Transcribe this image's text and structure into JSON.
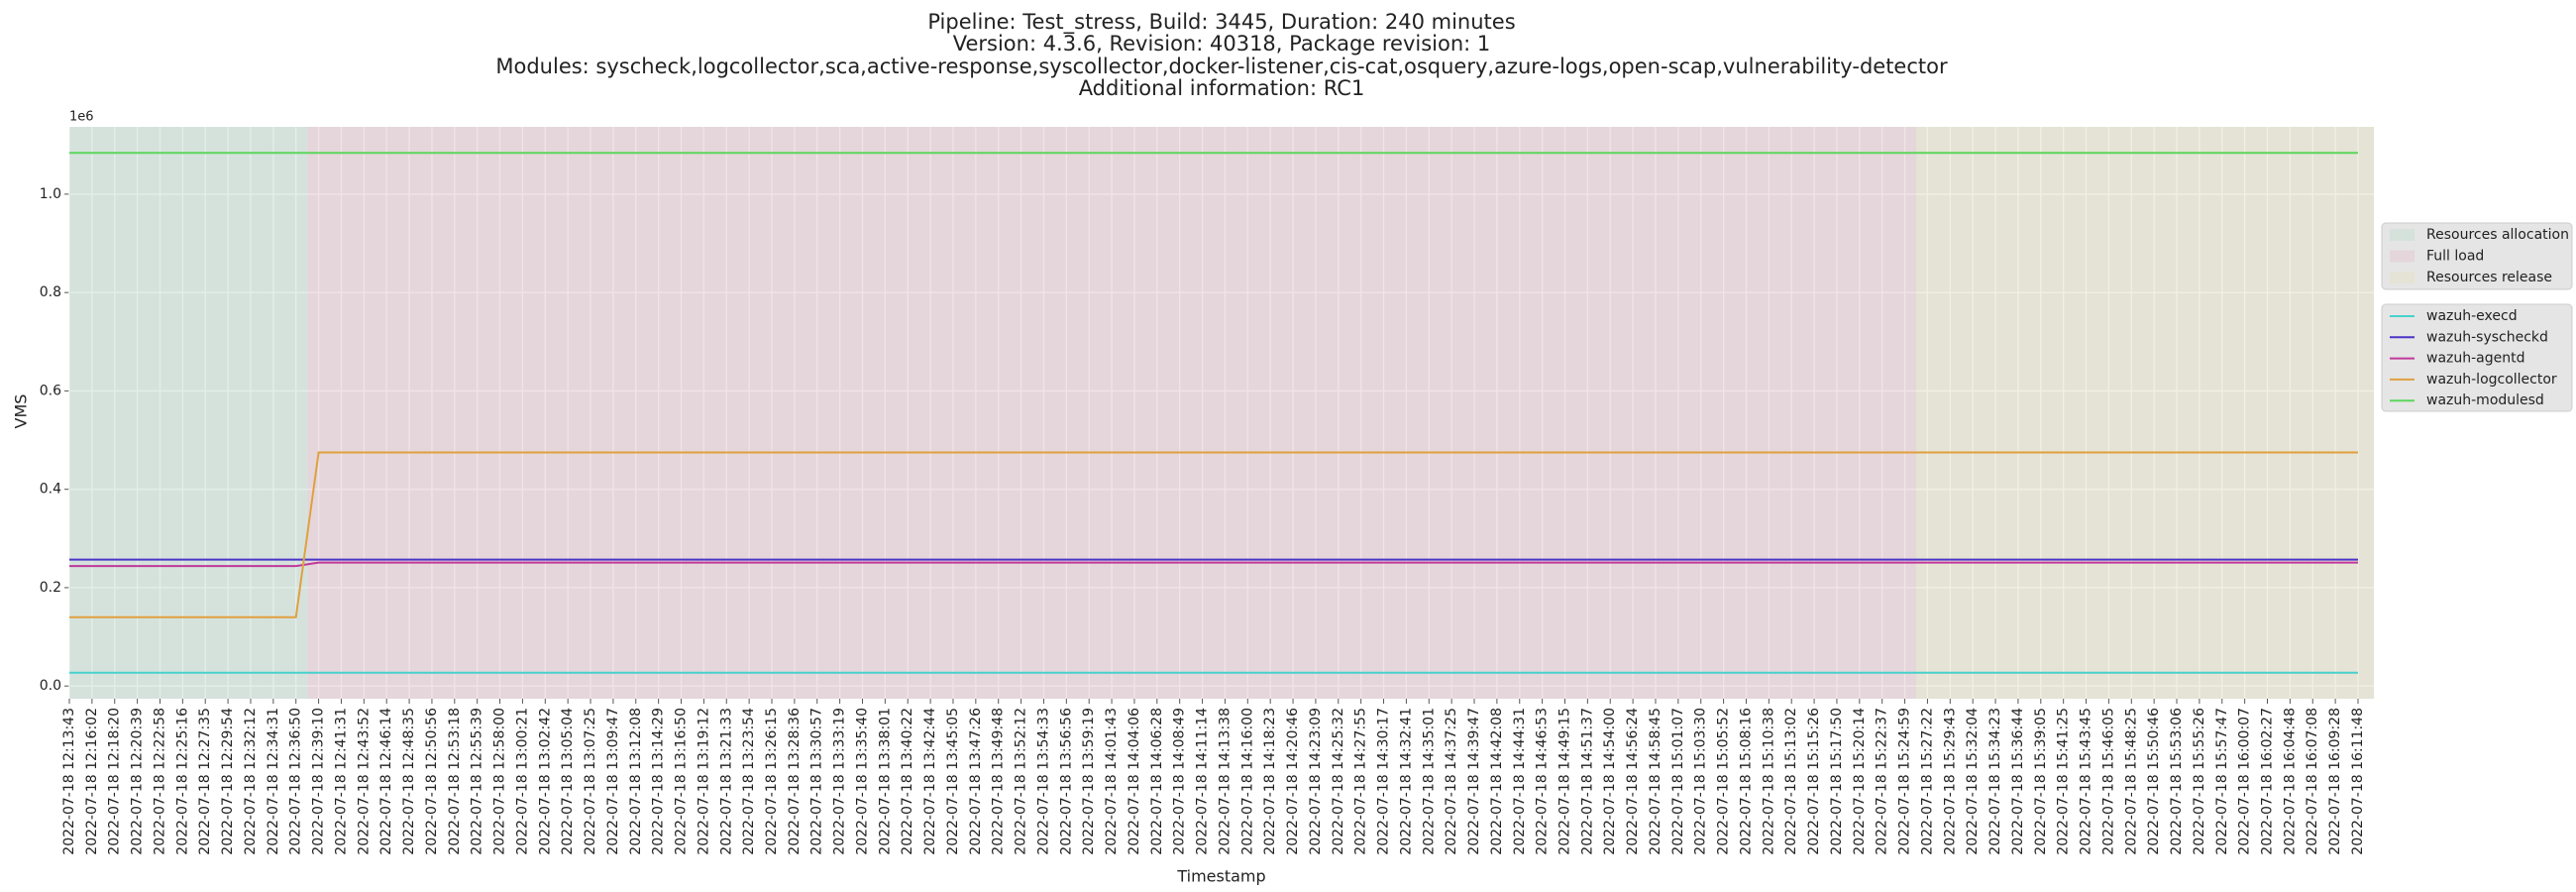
{
  "chart_data": {
    "type": "line",
    "title": [
      "Pipeline: Test_stress, Build: 3445, Duration: 240 minutes",
      "Version: 4.3.6, Revision: 40318, Package revision: 1",
      "Modules: syscheck,logcollector,sca,active-response,syscollector,docker-listener,cis-cat,osquery,azure-logs,open-scap,vulnerability-detector",
      "Additional information: RC1"
    ],
    "x_label": "Timestamp",
    "y_label": "VMS",
    "y_offset_label": "1e6",
    "categories": [
      "2022-07-18 12:13:43",
      "2022-07-18 12:16:02",
      "2022-07-18 12:18:20",
      "2022-07-18 12:20:39",
      "2022-07-18 12:22:58",
      "2022-07-18 12:25:16",
      "2022-07-18 12:27:35",
      "2022-07-18 12:29:54",
      "2022-07-18 12:32:12",
      "2022-07-18 12:34:31",
      "2022-07-18 12:36:50",
      "2022-07-18 12:39:10",
      "2022-07-18 12:41:31",
      "2022-07-18 12:43:52",
      "2022-07-18 12:46:14",
      "2022-07-18 12:48:35",
      "2022-07-18 12:50:56",
      "2022-07-18 12:53:18",
      "2022-07-18 12:55:39",
      "2022-07-18 12:58:00",
      "2022-07-18 13:00:21",
      "2022-07-18 13:02:42",
      "2022-07-18 13:05:04",
      "2022-07-18 13:07:25",
      "2022-07-18 13:09:47",
      "2022-07-18 13:12:08",
      "2022-07-18 13:14:29",
      "2022-07-18 13:16:50",
      "2022-07-18 13:19:12",
      "2022-07-18 13:21:33",
      "2022-07-18 13:23:54",
      "2022-07-18 13:26:15",
      "2022-07-18 13:28:36",
      "2022-07-18 13:30:57",
      "2022-07-18 13:33:19",
      "2022-07-18 13:35:40",
      "2022-07-18 13:38:01",
      "2022-07-18 13:40:22",
      "2022-07-18 13:42:44",
      "2022-07-18 13:45:05",
      "2022-07-18 13:47:26",
      "2022-07-18 13:49:48",
      "2022-07-18 13:52:12",
      "2022-07-18 13:54:33",
      "2022-07-18 13:56:56",
      "2022-07-18 13:59:19",
      "2022-07-18 14:01:43",
      "2022-07-18 14:04:06",
      "2022-07-18 14:06:28",
      "2022-07-18 14:08:49",
      "2022-07-18 14:11:14",
      "2022-07-18 14:13:38",
      "2022-07-18 14:16:00",
      "2022-07-18 14:18:23",
      "2022-07-18 14:20:46",
      "2022-07-18 14:23:09",
      "2022-07-18 14:25:32",
      "2022-07-18 14:27:55",
      "2022-07-18 14:30:17",
      "2022-07-18 14:32:41",
      "2022-07-18 14:35:01",
      "2022-07-18 14:37:25",
      "2022-07-18 14:39:47",
      "2022-07-18 14:42:08",
      "2022-07-18 14:44:31",
      "2022-07-18 14:46:53",
      "2022-07-18 14:49:15",
      "2022-07-18 14:51:37",
      "2022-07-18 14:54:00",
      "2022-07-18 14:56:24",
      "2022-07-18 14:58:45",
      "2022-07-18 15:01:07",
      "2022-07-18 15:03:30",
      "2022-07-18 15:05:52",
      "2022-07-18 15:08:16",
      "2022-07-18 15:10:38",
      "2022-07-18 15:13:02",
      "2022-07-18 15:15:26",
      "2022-07-18 15:17:50",
      "2022-07-18 15:20:14",
      "2022-07-18 15:22:37",
      "2022-07-18 15:24:59",
      "2022-07-18 15:27:22",
      "2022-07-18 15:29:43",
      "2022-07-18 15:32:04",
      "2022-07-18 15:34:23",
      "2022-07-18 15:36:44",
      "2022-07-18 15:39:05",
      "2022-07-18 15:41:25",
      "2022-07-18 15:43:45",
      "2022-07-18 15:46:05",
      "2022-07-18 15:48:25",
      "2022-07-18 15:50:46",
      "2022-07-18 15:53:06",
      "2022-07-18 15:55:26",
      "2022-07-18 15:57:47",
      "2022-07-18 16:00:07",
      "2022-07-18 16:02:27",
      "2022-07-18 16:04:48",
      "2022-07-18 16:07:08",
      "2022-07-18 16:09:28",
      "2022-07-18 16:11:48"
    ],
    "regions": [
      {
        "name": "Resources allocation",
        "color": "#c5dfd3",
        "start": "2022-07-18 12:13:43",
        "end": "2022-07-18 12:39:10"
      },
      {
        "name": "Full load",
        "color": "#e3c7cf",
        "start": "2022-07-18 12:39:10",
        "end": "2022-07-18 15:27:22"
      },
      {
        "name": "Resources release",
        "color": "#e3e1c5",
        "start": "2022-07-18 15:27:22",
        "end": "2022-07-18 16:11:48"
      }
    ],
    "series": [
      {
        "name": "wazuh-execd",
        "color": "#48d1cc",
        "values": [
          27000,
          27000,
          27000,
          27000,
          27000,
          27000,
          27000,
          27000,
          27000,
          27000,
          27000,
          27000,
          27000,
          27000,
          27000,
          27000,
          27000,
          27000,
          27000,
          27000,
          27000,
          27000,
          27000,
          27000,
          27000,
          27000,
          27000,
          27000,
          27000,
          27000,
          27000,
          27000,
          27000,
          27000,
          27000,
          27000,
          27000,
          27000,
          27000,
          27000,
          27000,
          27000,
          27000,
          27000,
          27000,
          27000,
          27000,
          27000,
          27000,
          27000,
          27000,
          27000,
          27000,
          27000,
          27000,
          27000,
          27000,
          27000,
          27000,
          27000,
          27000,
          27000,
          27000,
          27000,
          27000,
          27000,
          27000,
          27000,
          27000,
          27000,
          27000,
          27000,
          27000,
          27000,
          27000,
          27000,
          27000,
          27000,
          27000,
          27000,
          27000,
          27000,
          27000,
          27000,
          27000,
          27000,
          27000,
          27000,
          27000,
          27000,
          27000,
          27000,
          27000,
          27000,
          27000,
          27000,
          27000,
          27000,
          27000,
          27000,
          27000,
          27000
        ]
      },
      {
        "name": "wazuh-syscheckd",
        "color": "#4b35c8",
        "values": [
          257000,
          257000,
          257000,
          257000,
          257000,
          257000,
          257000,
          257000,
          257000,
          257000,
          257000,
          257000,
          257000,
          257000,
          257000,
          257000,
          257000,
          257000,
          257000,
          257000,
          257000,
          257000,
          257000,
          257000,
          257000,
          257000,
          257000,
          257000,
          257000,
          257000,
          257000,
          257000,
          257000,
          257000,
          257000,
          257000,
          257000,
          257000,
          257000,
          257000,
          257000,
          257000,
          257000,
          257000,
          257000,
          257000,
          257000,
          257000,
          257000,
          257000,
          257000,
          257000,
          257000,
          257000,
          257000,
          257000,
          257000,
          257000,
          257000,
          257000,
          257000,
          257000,
          257000,
          257000,
          257000,
          257000,
          257000,
          257000,
          257000,
          257000,
          257000,
          257000,
          257000,
          257000,
          257000,
          257000,
          257000,
          257000,
          257000,
          257000,
          257000,
          257000,
          257000,
          257000,
          257000,
          257000,
          257000,
          257000,
          257000,
          257000,
          257000,
          257000,
          257000,
          257000,
          257000,
          257000,
          257000,
          257000,
          257000,
          257000,
          257000,
          257000
        ]
      },
      {
        "name": "wazuh-agentd",
        "color": "#c0399a",
        "values": [
          244000,
          244000,
          244000,
          244000,
          244000,
          244000,
          244000,
          244000,
          244000,
          244000,
          244000,
          251000,
          251000,
          251000,
          251000,
          251000,
          251000,
          251000,
          251000,
          251000,
          251000,
          251000,
          251000,
          251000,
          251000,
          251000,
          251000,
          251000,
          251000,
          251000,
          251000,
          251000,
          251000,
          251000,
          251000,
          251000,
          251000,
          251000,
          251000,
          251000,
          251000,
          251000,
          251000,
          251000,
          251000,
          251000,
          251000,
          251000,
          251000,
          251000,
          251000,
          251000,
          251000,
          251000,
          251000,
          251000,
          251000,
          251000,
          251000,
          251000,
          251000,
          251000,
          251000,
          251000,
          251000,
          251000,
          251000,
          251000,
          251000,
          251000,
          251000,
          251000,
          251000,
          251000,
          251000,
          251000,
          251000,
          251000,
          251000,
          251000,
          251000,
          251000,
          251000,
          251000,
          251000,
          251000,
          251000,
          251000,
          251000,
          251000,
          251000,
          251000,
          251000,
          251000,
          251000,
          251000,
          251000,
          251000,
          251000,
          251000,
          251000,
          251000
        ]
      },
      {
        "name": "wazuh-logcollector",
        "color": "#e0a040",
        "values": [
          140000,
          140000,
          140000,
          140000,
          140000,
          140000,
          140000,
          140000,
          140000,
          140000,
          140000,
          475000,
          475000,
          475000,
          475000,
          475000,
          475000,
          475000,
          475000,
          475000,
          475000,
          475000,
          475000,
          475000,
          475000,
          475000,
          475000,
          475000,
          475000,
          475000,
          475000,
          475000,
          475000,
          475000,
          475000,
          475000,
          475000,
          475000,
          475000,
          475000,
          475000,
          475000,
          475000,
          475000,
          475000,
          475000,
          475000,
          475000,
          475000,
          475000,
          475000,
          475000,
          475000,
          475000,
          475000,
          475000,
          475000,
          475000,
          475000,
          475000,
          475000,
          475000,
          475000,
          475000,
          475000,
          475000,
          475000,
          475000,
          475000,
          475000,
          475000,
          475000,
          475000,
          475000,
          475000,
          475000,
          475000,
          475000,
          475000,
          475000,
          475000,
          475000,
          475000,
          475000,
          475000,
          475000,
          475000,
          475000,
          475000,
          475000,
          475000,
          475000,
          475000,
          475000,
          475000,
          475000,
          475000,
          475000,
          475000,
          475000,
          475000,
          475000
        ]
      },
      {
        "name": "wazuh-modulesd",
        "color": "#5cd65c",
        "values": [
          1084000,
          1084000,
          1084000,
          1084000,
          1084000,
          1084000,
          1084000,
          1084000,
          1084000,
          1084000,
          1084000,
          1084000,
          1084000,
          1084000,
          1084000,
          1084000,
          1084000,
          1084000,
          1084000,
          1084000,
          1084000,
          1084000,
          1084000,
          1084000,
          1084000,
          1084000,
          1084000,
          1084000,
          1084000,
          1084000,
          1084000,
          1084000,
          1084000,
          1084000,
          1084000,
          1084000,
          1084000,
          1084000,
          1084000,
          1084000,
          1084000,
          1084000,
          1084000,
          1084000,
          1084000,
          1084000,
          1084000,
          1084000,
          1084000,
          1084000,
          1084000,
          1084000,
          1084000,
          1084000,
          1084000,
          1084000,
          1084000,
          1084000,
          1084000,
          1084000,
          1084000,
          1084000,
          1084000,
          1084000,
          1084000,
          1084000,
          1084000,
          1084000,
          1084000,
          1084000,
          1084000,
          1084000,
          1084000,
          1084000,
          1084000,
          1084000,
          1084000,
          1084000,
          1084000,
          1084000,
          1084000,
          1084000,
          1084000,
          1084000,
          1084000,
          1084000,
          1084000,
          1084000,
          1084000,
          1084000,
          1084000,
          1084000,
          1084000,
          1084000,
          1084000,
          1084000,
          1084000,
          1084000,
          1084000,
          1084000,
          1084000,
          1084000
        ]
      }
    ],
    "ylim": [
      -25850,
      1136850
    ],
    "yticks": [
      {
        "value": 0,
        "label": "0.0"
      },
      {
        "value": 200000,
        "label": "0.2"
      },
      {
        "value": 400000,
        "label": "0.4"
      },
      {
        "value": 600000,
        "label": "0.6"
      },
      {
        "value": 800000,
        "label": "0.8"
      },
      {
        "value": 1000000,
        "label": "1.0"
      }
    ],
    "grid": true
  }
}
